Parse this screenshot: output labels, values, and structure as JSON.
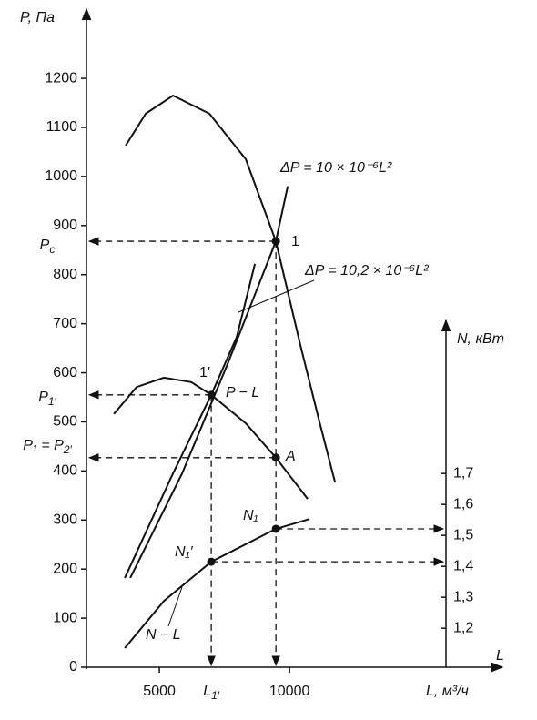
{
  "chart_data": {
    "type": "line",
    "y_label": "P, Па",
    "x_label": "L, м³/ч",
    "x_axis_end_label": "L",
    "y2_label": "N, кВт",
    "xlim": [
      2200,
      18000
    ],
    "xticks": [
      5000,
      10000
    ],
    "ylim": [
      0,
      1330
    ],
    "yticks": [
      0,
      100,
      200,
      300,
      400,
      500,
      600,
      700,
      800,
      900,
      1000,
      1100,
      1200
    ],
    "y2lim": [
      1.074,
      2.18
    ],
    "y2ticks": [
      {
        "value": 1.2,
        "label": "1,2"
      },
      {
        "value": 1.3,
        "label": "1,3"
      },
      {
        "value": 1.4,
        "label": "1,4"
      },
      {
        "value": 1.5,
        "label": "1,5"
      },
      {
        "value": 1.6,
        "label": "1,6"
      },
      {
        "value": 1.7,
        "label": "1,7"
      }
    ],
    "color": "#111111",
    "series": [
      {
        "x": [
          3706,
          4476,
          5524,
          6923,
          8322,
          9476,
          10420,
          11119,
          11748
        ],
        "values": [
          1063,
          1128,
          1165,
          1128,
          1035,
          868,
          655,
          506,
          377
        ]
      },
      {
        "name": "P − L",
        "x": [
          3252,
          4126,
          5175,
          6224,
          6993,
          8322,
          9476,
          10699
        ],
        "values": [
          516,
          571,
          590,
          581,
          555,
          497,
          427,
          343
        ]
      },
      {
        "name": "ΔP = 10 × 10⁻⁶L²",
        "x": [
          3881,
          5874,
          7622,
          9476,
          9930
        ],
        "values": [
          182,
          395,
          618,
          868,
          980
        ]
      },
      {
        "name": "ΔP = 10,2 × 10⁻⁶L²",
        "x": [
          3671,
          5524,
          6993,
          7972,
          8671
        ],
        "values": [
          182,
          395,
          555,
          673,
          822
        ]
      },
      {
        "name": "N − L",
        "x": [
          3671,
          5175,
          6993,
          9476,
          10769
        ],
        "values": [
          39,
          135,
          215,
          282,
          302
        ]
      }
    ],
    "points": [
      {
        "label": "1",
        "x": 9476,
        "y": 868,
        "p_label": {
          "main": "P",
          "sub": "с"
        }
      },
      {
        "label": "1′",
        "x": 6993,
        "y": 555,
        "p_label": {
          "main": "P",
          "sub": "1′"
        },
        "l_label": {
          "main": "L",
          "sub": "1′"
        }
      },
      {
        "label": "A",
        "x": 9476,
        "y": 427,
        "p_label": {
          "main": "P₁ = P",
          "sub": "2′"
        }
      },
      {
        "label": "N₁",
        "x": 9476,
        "y": 282
      },
      {
        "label": "N₁′",
        "x": 6993,
        "y": 215
      }
    ]
  }
}
